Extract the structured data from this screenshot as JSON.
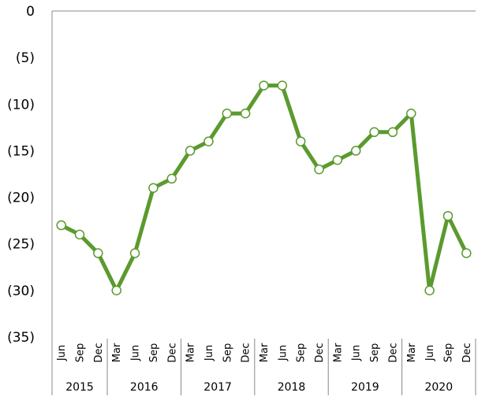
{
  "chart_data": {
    "type": "line",
    "title": "",
    "xlabel": "",
    "ylabel": "",
    "ylim": [
      -35,
      0
    ],
    "y_tick_values": [
      0,
      -5,
      -10,
      -15,
      -20,
      -25,
      -30,
      -35
    ],
    "y_tick_labels": [
      "0",
      "(5)",
      "(10)",
      "(15)",
      "(20)",
      "(25)",
      "(30)",
      "(35)"
    ],
    "grid": false,
    "legend": "none",
    "line_color": "#5b9a2e",
    "marker_fill": "#ffffff",
    "categories": [
      "Jun",
      "Sep",
      "Dec",
      "Mar",
      "Jun",
      "Sep",
      "Dec",
      "Mar",
      "Jun",
      "Sep",
      "Dec",
      "Mar",
      "Jun",
      "Sep",
      "Dec",
      "Mar",
      "Jun",
      "Sep",
      "Dec",
      "Mar",
      "Jun",
      "Sep",
      "Dec"
    ],
    "years": [
      {
        "label": "2015",
        "count": 3
      },
      {
        "label": "2016",
        "count": 4
      },
      {
        "label": "2017",
        "count": 4
      },
      {
        "label": "2018",
        "count": 4
      },
      {
        "label": "2019",
        "count": 4
      },
      {
        "label": "2020",
        "count": 4
      }
    ],
    "series": [
      {
        "values": [
          -23,
          -24,
          -26,
          -30,
          -26,
          -19,
          -18,
          -15,
          -14,
          -11,
          -11,
          -8,
          -8,
          -14,
          -17,
          -16,
          -15,
          -13,
          -13,
          -11,
          -30,
          -22,
          -26
        ]
      }
    ]
  }
}
